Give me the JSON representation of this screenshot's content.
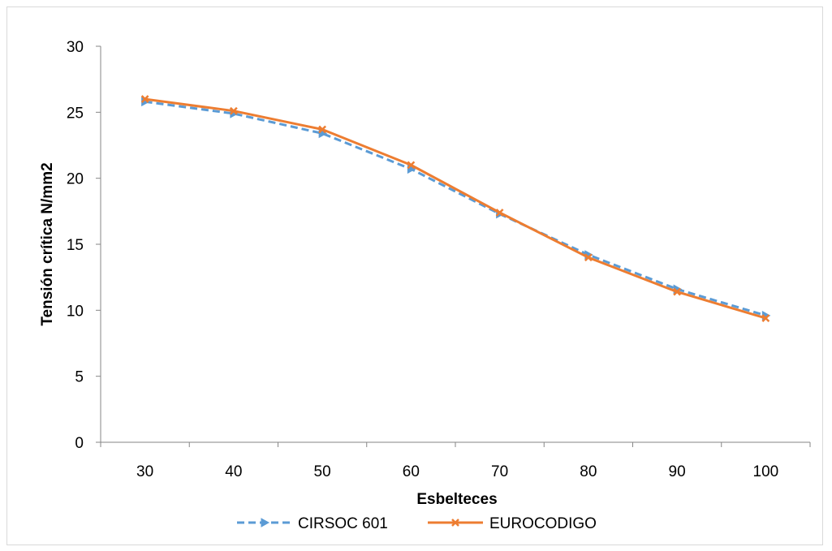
{
  "chart_data": {
    "type": "line",
    "x": [
      "30",
      "40",
      "50",
      "60",
      "70",
      "80",
      "90",
      "100"
    ],
    "xlabel": "Esbelteces",
    "ylabel": "Tensión crítica N/mm2",
    "ylim": [
      0,
      30
    ],
    "yticks": [
      "0",
      "5",
      "10",
      "15",
      "20",
      "25",
      "30"
    ],
    "grid": false,
    "legend": "bottom",
    "series": [
      {
        "name": "CIRSOC 601",
        "color": "#5b9bd5",
        "style": "dashed",
        "marker": "triangle",
        "values": [
          25.8,
          24.9,
          23.4,
          20.7,
          17.3,
          14.2,
          11.6,
          9.6
        ]
      },
      {
        "name": "EUROCODIGO",
        "color": "#ed7d31",
        "style": "solid",
        "marker": "x",
        "values": [
          26.0,
          25.1,
          23.7,
          21.0,
          17.4,
          14.0,
          11.4,
          9.4
        ]
      }
    ]
  }
}
